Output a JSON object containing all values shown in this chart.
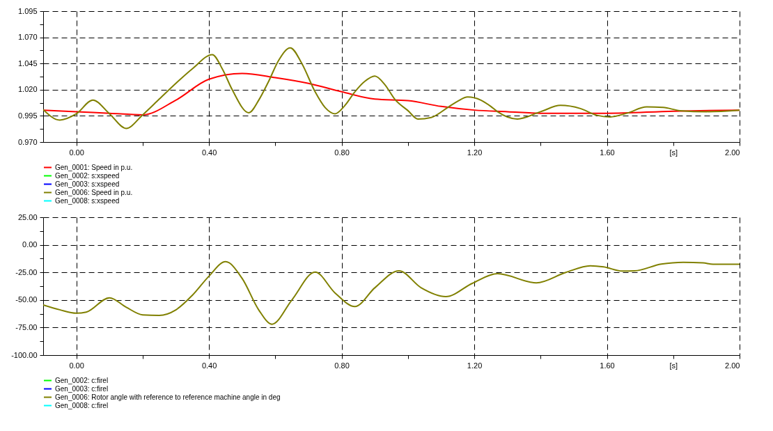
{
  "chart_data": [
    {
      "type": "line",
      "xlim": [
        -0.1,
        2.0
      ],
      "ylim": [
        0.97,
        1.095
      ],
      "xticks": [
        {
          "value": 0,
          "label": "0.00"
        },
        {
          "value": 0.2,
          "label": null
        },
        {
          "value": 0.4,
          "label": "0.40"
        },
        {
          "value": 0.6,
          "label": null
        },
        {
          "value": 0.8,
          "label": "0.80"
        },
        {
          "value": 1.0,
          "label": null
        },
        {
          "value": 1.2,
          "label": "1.20"
        },
        {
          "value": 1.4,
          "label": null
        },
        {
          "value": 1.6,
          "label": "1.60"
        },
        {
          "value": 1.8,
          "label": "[s]"
        },
        {
          "value": 2.0,
          "label": "2.00"
        }
      ],
      "yticks": [
        {
          "value": 0.97,
          "label": "0.970"
        },
        {
          "value": 0.9825,
          "label": null
        },
        0.995,
        {
          "value": 1.0075,
          "label": null
        },
        {
          "value": 1.02,
          "label": "1.020"
        },
        {
          "value": 1.0325,
          "label": null
        },
        1.045,
        {
          "value": 1.0575,
          "label": null
        },
        {
          "value": 1.07,
          "label": "1.070"
        },
        {
          "value": 1.0825,
          "label": null
        },
        1.095
      ],
      "grid": true,
      "legend": "bottom",
      "line_style": "solid",
      "series": [
        {
          "name": "Gen_0001: Speed in p.u.",
          "color": "#ff0000",
          "x": [
            -0.1,
            0.0,
            0.1,
            0.2,
            0.3,
            0.4,
            0.5,
            0.6,
            0.7,
            0.8,
            0.9,
            1.0,
            1.1,
            1.2,
            1.3,
            1.4,
            1.6,
            1.8,
            2.0
          ],
          "values": [
            1.0005,
            0.999,
            0.9975,
            0.996,
            1.01,
            1.03,
            1.0355,
            1.0315,
            1.026,
            1.018,
            1.011,
            1.0095,
            1.004,
            1.0005,
            0.999,
            0.9975,
            0.9975,
            0.9995,
            1.0005
          ]
        },
        {
          "name": "Gen_0002: s:xspeed",
          "color": "#00ff00"
        },
        {
          "name": "Gen_0003: s:xspeed",
          "color": "#0000ff"
        },
        {
          "name": "Gen_0006: Speed in p.u.",
          "color": "#808000",
          "x": [
            -0.1,
            -0.05,
            0.0,
            0.05,
            0.1,
            0.15,
            0.2,
            0.25,
            0.3,
            0.35,
            0.41,
            0.44,
            0.47,
            0.52,
            0.55,
            0.58,
            0.61,
            0.645,
            0.68,
            0.72,
            0.75,
            0.78,
            0.81,
            0.84,
            0.87,
            0.9,
            0.93,
            0.96,
            1.0,
            1.03,
            1.07,
            1.12,
            1.15,
            1.18,
            1.22,
            1.25,
            1.27,
            1.33,
            1.4,
            1.46,
            1.52,
            1.57,
            1.61,
            1.66,
            1.72,
            1.77,
            1.82,
            1.9,
            2.0
          ],
          "values": [
            1.001,
            0.991,
            0.997,
            1.01,
            0.997,
            0.983,
            0.996,
            1.011,
            1.026,
            1.04,
            1.0535,
            1.04,
            1.02,
            0.998,
            1.01,
            1.028,
            1.048,
            1.06,
            1.045,
            1.018,
            1.003,
            0.997,
            1.005,
            1.018,
            1.028,
            1.033,
            1.025,
            1.011,
            1.0,
            0.992,
            0.9935,
            1.003,
            1.009,
            1.013,
            1.01,
            1.004,
            0.999,
            0.992,
            0.999,
            1.005,
            1.002,
            0.9955,
            0.994,
            0.9975,
            1.0035,
            1.003,
            1.0,
            0.999,
            1.0005
          ]
        },
        {
          "name": "Gen_0008: s:xspeed",
          "color": "#00ffff"
        }
      ]
    },
    {
      "type": "line",
      "xlim": [
        -0.1,
        2.0
      ],
      "ylim": [
        -100,
        25
      ],
      "xticks": [
        {
          "value": 0,
          "label": "0.00"
        },
        {
          "value": 0.2,
          "label": null
        },
        {
          "value": 0.4,
          "label": "0.40"
        },
        {
          "value": 0.6,
          "label": null
        },
        {
          "value": 0.8,
          "label": "0.80"
        },
        {
          "value": 1.0,
          "label": null
        },
        {
          "value": 1.2,
          "label": "1.20"
        },
        {
          "value": 1.4,
          "label": null
        },
        {
          "value": 1.6,
          "label": "1.60"
        },
        {
          "value": 1.8,
          "label": "[s]"
        },
        {
          "value": 2.0,
          "label": "2.00"
        }
      ],
      "yticks": [
        {
          "value": -100,
          "label": "-100.00"
        },
        {
          "value": -87.5,
          "label": null
        },
        {
          "value": -75,
          "label": "-75.00"
        },
        {
          "value": -62.5,
          "label": null
        },
        {
          "value": -50,
          "label": "-50.00"
        },
        {
          "value": -37.5,
          "label": null
        },
        {
          "value": -25,
          "label": "-25.00"
        },
        {
          "value": -12.5,
          "label": null
        },
        {
          "value": 0,
          "label": "0.00"
        },
        {
          "value": 12.5,
          "label": null
        },
        {
          "value": 25,
          "label": "25.00"
        }
      ],
      "grid": true,
      "legend": "bottom",
      "line_style": "solid",
      "series": [
        {
          "name": "Gen_0002: c:firel",
          "color": "#00ff00"
        },
        {
          "name": "Gen_0003: c:firel",
          "color": "#0000ff"
        },
        {
          "name": "Gen_0006: Rotor angle with reference to reference machine angle in deg",
          "color": "#808000",
          "x": [
            -0.1,
            -0.05,
            0.0,
            0.03,
            0.1,
            0.15,
            0.2,
            0.25,
            0.3,
            0.35,
            0.4,
            0.45,
            0.5,
            0.55,
            0.59,
            0.65,
            0.72,
            0.78,
            0.84,
            0.9,
            0.973,
            1.04,
            1.114,
            1.195,
            1.27,
            1.387,
            1.476,
            1.55,
            1.59,
            1.646,
            1.683,
            1.764,
            1.83,
            1.89,
            1.92,
            2.0
          ],
          "values": [
            -54.5,
            -58.9,
            -62,
            -61,
            -48,
            -56.5,
            -63.5,
            -64,
            -59,
            -45.7,
            -28.4,
            -15.3,
            -30.5,
            -59,
            -72,
            -50,
            -24.7,
            -43.6,
            -56,
            -39,
            -23.6,
            -39,
            -47,
            -34.8,
            -26.2,
            -34.5,
            -25,
            -19,
            -20,
            -23.8,
            -23.6,
            -17.5,
            -15.8,
            -16.4,
            -17.6,
            -17.6
          ]
        },
        {
          "name": "Gen_0008: c:firel",
          "color": "#00ffff"
        }
      ]
    }
  ]
}
